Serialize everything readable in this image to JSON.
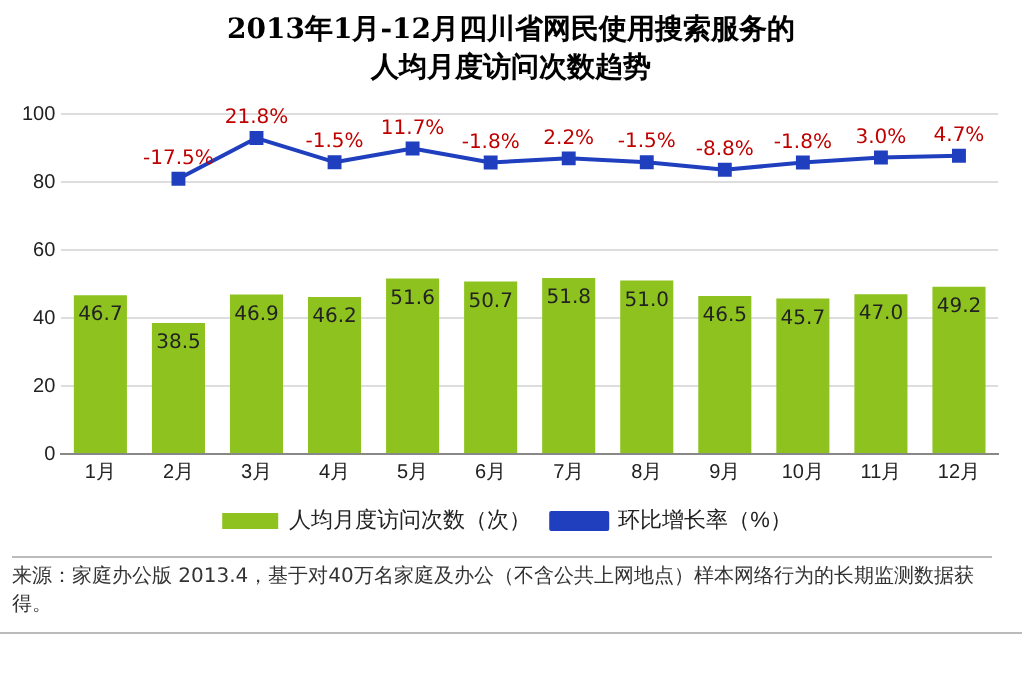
{
  "chart_data": {
    "type": "bar",
    "title": "2013年1月-12月四川省网民使用搜索服务的人均月度访问次数趋势",
    "categories": [
      "1月",
      "2月",
      "3月",
      "4月",
      "5月",
      "6月",
      "7月",
      "8月",
      "9月",
      "10月",
      "11月",
      "12月"
    ],
    "series": [
      {
        "name": "人均月度访问次数（次）",
        "color": "#8dc21f",
        "values": [
          46.7,
          38.5,
          46.9,
          46.2,
          51.6,
          50.7,
          51.8,
          51.0,
          46.5,
          45.7,
          47.0,
          49.2
        ],
        "value_labels": [
          "46.7",
          "38.5",
          "46.9",
          "46.2",
          "51.6",
          "50.7",
          "51.8",
          "51.0",
          "46.5",
          "45.7",
          "47.0",
          "49.2"
        ]
      },
      {
        "name": "环比增长率（%）",
        "type": "line",
        "axis": "y2",
        "color": "#1f3fbf",
        "marker": "square",
        "values": [
          null,
          -17.5,
          21.8,
          -1.5,
          11.7,
          -1.8,
          2.2,
          -1.5,
          -8.8,
          -1.8,
          3.0,
          4.7
        ],
        "value_labels": [
          null,
          "-17.5%",
          "21.8%",
          "-1.5%",
          "11.7%",
          "-1.8%",
          "2.2%",
          "-1.5%",
          "-8.8%",
          "-1.8%",
          "3.0%",
          "4.7%"
        ]
      }
    ],
    "ylim": [
      0,
      100
    ],
    "yticks": [
      0,
      20,
      40,
      60,
      80,
      100
    ],
    "y2lim": [
      -283,
      45
    ],
    "grid": "y",
    "legend": "bottom",
    "annotations": [
      "来源：家庭办公版 2013.4，基于对40万名家庭及办公（不含公共上网地点）样本网络行为的长期监测数据获得。"
    ]
  }
}
